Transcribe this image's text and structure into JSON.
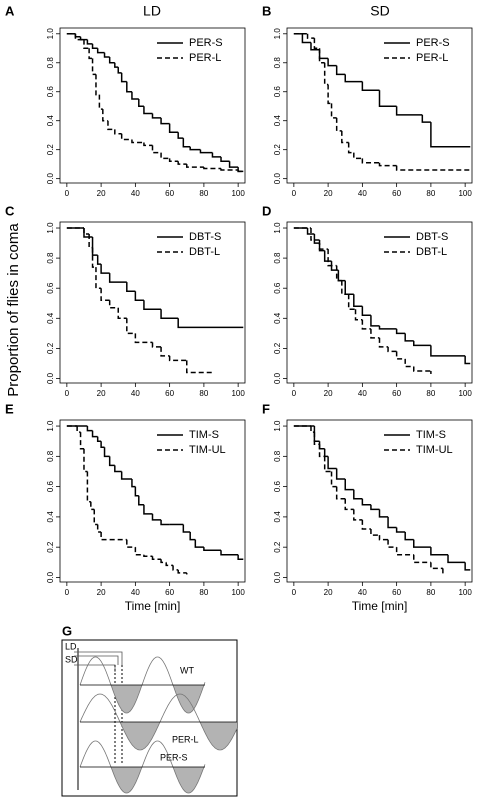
{
  "figure": {
    "column_titles": [
      "LD",
      "SD"
    ],
    "ylabel": "Proportion of flies in coma",
    "diagram": {
      "panel": "G",
      "labels": [
        "LD",
        "SD",
        "WT",
        "PER-L",
        "PER-S"
      ]
    }
  },
  "chart_data": [
    {
      "type": "step",
      "panel": "A",
      "xlim": [
        -4,
        104
      ],
      "ylim": [
        -0.03,
        1.04
      ],
      "xticks": [
        0,
        20,
        40,
        60,
        80,
        100
      ],
      "yticks": [
        {
          "value": 0,
          "label": "0.0"
        },
        0.2,
        0.4,
        0.6,
        0.8,
        {
          "value": 1,
          "label": "1.0"
        }
      ],
      "legend": "upper right",
      "series": [
        {
          "name": "PER-S",
          "color": "#000000",
          "line_style": "solid",
          "x": [
            0,
            5,
            8,
            12,
            15,
            18,
            22,
            25,
            28,
            30,
            32,
            35,
            38,
            42,
            45,
            50,
            55,
            60,
            65,
            68,
            72,
            78,
            85,
            90,
            95,
            100,
            103
          ],
          "values": [
            1,
            0.98,
            0.96,
            0.93,
            0.9,
            0.87,
            0.84,
            0.8,
            0.77,
            0.73,
            0.67,
            0.6,
            0.55,
            0.5,
            0.45,
            0.42,
            0.38,
            0.32,
            0.28,
            0.22,
            0.2,
            0.18,
            0.15,
            0.12,
            0.08,
            0.05,
            0.05
          ]
        },
        {
          "name": "PER-L",
          "color": "#000000",
          "line_style": "dashed",
          "x": [
            0,
            5,
            10,
            13,
            15,
            17,
            19,
            21,
            24,
            28,
            32,
            38,
            45,
            50,
            55,
            60,
            65,
            70,
            80,
            90,
            100,
            103
          ],
          "values": [
            1,
            0.96,
            0.9,
            0.83,
            0.72,
            0.58,
            0.48,
            0.4,
            0.34,
            0.31,
            0.27,
            0.25,
            0.23,
            0.18,
            0.14,
            0.12,
            0.1,
            0.08,
            0.07,
            0.06,
            0.05,
            0.05
          ]
        }
      ]
    },
    {
      "type": "step",
      "panel": "B",
      "xlim": [
        -4,
        104
      ],
      "ylim": [
        -0.03,
        1.04
      ],
      "xticks": [
        0,
        20,
        40,
        60,
        80,
        100
      ],
      "yticks": [
        {
          "value": 0,
          "label": "0.0"
        },
        0.2,
        0.4,
        0.6,
        0.8,
        {
          "value": 1,
          "label": "1.0"
        }
      ],
      "legend": "upper right",
      "series": [
        {
          "name": "PER-S",
          "color": "#000000",
          "line_style": "solid",
          "x": [
            0,
            5,
            10,
            15,
            20,
            25,
            30,
            40,
            50,
            60,
            75,
            80,
            103
          ],
          "values": [
            1,
            0.94,
            0.89,
            0.83,
            0.78,
            0.72,
            0.67,
            0.61,
            0.5,
            0.44,
            0.39,
            0.22,
            0.22
          ]
        },
        {
          "name": "PER-L",
          "color": "#000000",
          "line_style": "dashed",
          "x": [
            0,
            8,
            12,
            15,
            18,
            20,
            22,
            25,
            28,
            32,
            35,
            40,
            50,
            60,
            103
          ],
          "values": [
            1,
            0.97,
            0.9,
            0.8,
            0.65,
            0.52,
            0.42,
            0.33,
            0.25,
            0.18,
            0.14,
            0.11,
            0.09,
            0.06,
            0.06
          ]
        }
      ]
    },
    {
      "type": "step",
      "panel": "C",
      "xlim": [
        -4,
        104
      ],
      "ylim": [
        -0.03,
        1.04
      ],
      "xticks": [
        0,
        20,
        40,
        60,
        80,
        100
      ],
      "yticks": [
        {
          "value": 0,
          "label": "0.0"
        },
        0.2,
        0.4,
        0.6,
        0.8,
        {
          "value": 1,
          "label": "1.0"
        }
      ],
      "legend": "upper right",
      "series": [
        {
          "name": "DBT-S",
          "color": "#000000",
          "line_style": "solid",
          "x": [
            0,
            10,
            15,
            18,
            20,
            25,
            35,
            40,
            45,
            55,
            65,
            103
          ],
          "values": [
            1,
            0.94,
            0.82,
            0.76,
            0.7,
            0.64,
            0.58,
            0.52,
            0.46,
            0.4,
            0.34,
            0.34
          ]
        },
        {
          "name": "DBT-L",
          "color": "#000000",
          "line_style": "dashed",
          "x": [
            0,
            10,
            13,
            15,
            17,
            20,
            25,
            30,
            35,
            40,
            50,
            55,
            60,
            70,
            85
          ],
          "values": [
            1,
            0.96,
            0.87,
            0.74,
            0.6,
            0.52,
            0.47,
            0.4,
            0.3,
            0.24,
            0.21,
            0.15,
            0.12,
            0.04,
            0.04
          ]
        }
      ]
    },
    {
      "type": "step",
      "panel": "D",
      "xlim": [
        -4,
        104
      ],
      "ylim": [
        -0.03,
        1.04
      ],
      "xticks": [
        0,
        20,
        40,
        60,
        80,
        100
      ],
      "yticks": [
        {
          "value": 0,
          "label": "0.0"
        },
        0.2,
        0.4,
        0.6,
        0.8,
        {
          "value": 1,
          "label": "1.0"
        }
      ],
      "legend": "upper right",
      "series": [
        {
          "name": "DBT-S",
          "color": "#000000",
          "line_style": "solid",
          "x": [
            0,
            8,
            12,
            15,
            18,
            22,
            26,
            30,
            35,
            40,
            45,
            50,
            60,
            65,
            70,
            80,
            100,
            103
          ],
          "values": [
            1,
            0.96,
            0.9,
            0.85,
            0.78,
            0.72,
            0.65,
            0.56,
            0.48,
            0.42,
            0.35,
            0.33,
            0.3,
            0.25,
            0.22,
            0.15,
            0.1,
            0.1
          ]
        },
        {
          "name": "DBT-L",
          "color": "#000000",
          "line_style": "dashed",
          "x": [
            0,
            10,
            15,
            20,
            25,
            28,
            32,
            36,
            40,
            45,
            50,
            55,
            60,
            65,
            70,
            80
          ],
          "values": [
            1,
            0.92,
            0.86,
            0.75,
            0.65,
            0.56,
            0.46,
            0.39,
            0.33,
            0.27,
            0.21,
            0.18,
            0.13,
            0.08,
            0.05,
            0.03
          ]
        }
      ]
    },
    {
      "type": "step",
      "panel": "E",
      "xlabel": "Time [min]",
      "xlim": [
        -4,
        104
      ],
      "ylim": [
        -0.03,
        1.04
      ],
      "xticks": [
        0,
        20,
        40,
        60,
        80,
        100
      ],
      "yticks": [
        {
          "value": 0,
          "label": "0.0"
        },
        0.2,
        0.4,
        0.6,
        0.8,
        {
          "value": 1,
          "label": "1.0"
        }
      ],
      "legend": "upper right",
      "series": [
        {
          "name": "TIM-S",
          "color": "#000000",
          "line_style": "solid",
          "x": [
            0,
            12,
            15,
            18,
            20,
            22,
            25,
            28,
            32,
            38,
            40,
            42,
            45,
            50,
            55,
            60,
            68,
            72,
            75,
            80,
            90,
            100,
            103
          ],
          "values": [
            1,
            0.97,
            0.93,
            0.9,
            0.86,
            0.8,
            0.74,
            0.7,
            0.65,
            0.6,
            0.54,
            0.48,
            0.42,
            0.38,
            0.35,
            0.35,
            0.3,
            0.25,
            0.2,
            0.18,
            0.15,
            0.12,
            0.12
          ]
        },
        {
          "name": "TIM-UL",
          "color": "#000000",
          "line_style": "dashed",
          "x": [
            0,
            6,
            8,
            10,
            12,
            14,
            16,
            18,
            20,
            25,
            35,
            40,
            45,
            50,
            55,
            58,
            62,
            65,
            70
          ],
          "values": [
            1,
            0.96,
            0.85,
            0.7,
            0.5,
            0.45,
            0.35,
            0.3,
            0.25,
            0.25,
            0.2,
            0.15,
            0.14,
            0.12,
            0.1,
            0.08,
            0.05,
            0.03,
            0.02
          ]
        }
      ]
    },
    {
      "type": "step",
      "panel": "F",
      "xlabel": "Time [min]",
      "xlim": [
        -4,
        104
      ],
      "ylim": [
        -0.03,
        1.04
      ],
      "xticks": [
        0,
        20,
        40,
        60,
        80,
        100
      ],
      "yticks": [
        {
          "value": 0,
          "label": "0.0"
        },
        0.2,
        0.4,
        0.6,
        0.8,
        {
          "value": 1,
          "label": "1.0"
        }
      ],
      "legend": "upper right",
      "series": [
        {
          "name": "TIM-S",
          "color": "#000000",
          "line_style": "solid",
          "x": [
            0,
            12,
            15,
            18,
            20,
            25,
            30,
            35,
            40,
            45,
            50,
            55,
            60,
            65,
            70,
            80,
            90,
            100,
            103
          ],
          "values": [
            1,
            0.9,
            0.85,
            0.8,
            0.72,
            0.65,
            0.58,
            0.52,
            0.48,
            0.45,
            0.4,
            0.33,
            0.3,
            0.25,
            0.2,
            0.15,
            0.1,
            0.05,
            0.05
          ]
        },
        {
          "name": "TIM-UL",
          "color": "#000000",
          "line_style": "dashed",
          "x": [
            0,
            10,
            12,
            15,
            18,
            22,
            25,
            30,
            35,
            40,
            45,
            50,
            55,
            60,
            70,
            80,
            87
          ],
          "values": [
            1,
            0.96,
            0.88,
            0.8,
            0.7,
            0.6,
            0.52,
            0.45,
            0.38,
            0.32,
            0.28,
            0.25,
            0.2,
            0.15,
            0.1,
            0.06,
            0.02
          ]
        }
      ]
    }
  ]
}
